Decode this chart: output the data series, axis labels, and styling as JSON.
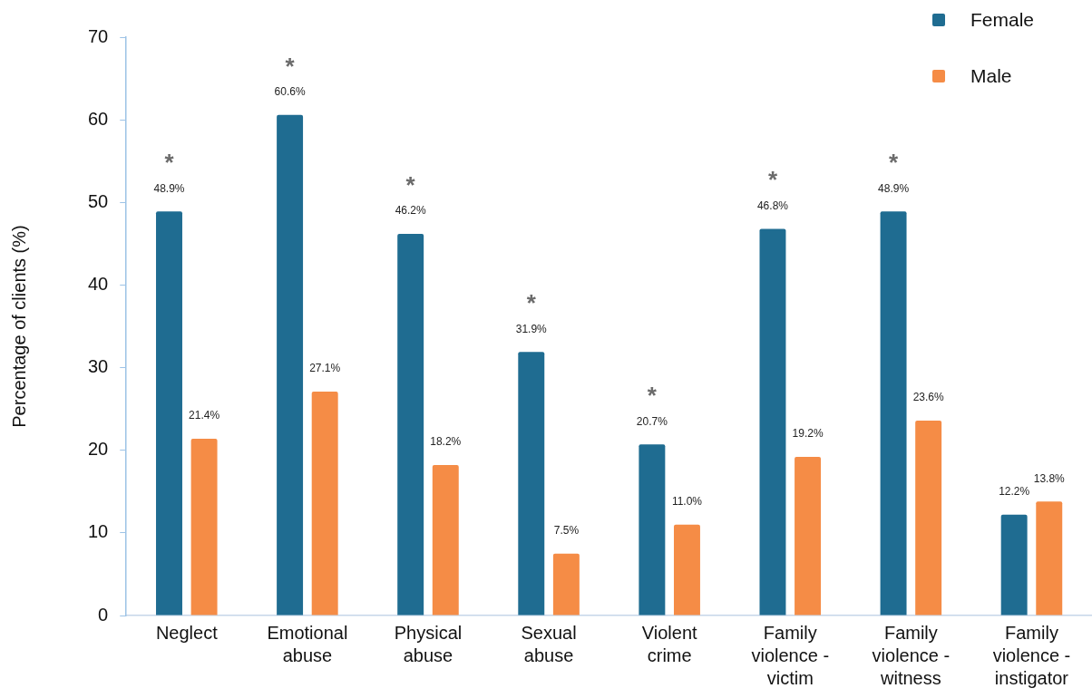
{
  "chart_data": {
    "type": "bar",
    "ylabel": "Percentage of clients (%)",
    "categories": [
      "Neglect",
      "Emotional abuse",
      "Physical abuse",
      "Sexual abuse",
      "Violent crime",
      "Family violence - victim",
      "Family violence - witness",
      "Family violence - instigator"
    ],
    "series": [
      {
        "name": "Female",
        "color": "#1f6c91",
        "values": [
          48.9,
          60.6,
          46.2,
          31.9,
          20.7,
          46.8,
          48.9,
          12.2
        ],
        "value_labels": [
          "48.9%",
          "60.6%",
          "46.2%",
          "31.9%",
          "20.7%",
          "46.8%",
          "48.9%",
          "12.2%"
        ]
      },
      {
        "name": "Male",
        "color": "#f58c46",
        "values": [
          21.4,
          27.1,
          18.2,
          7.5,
          11.0,
          19.2,
          23.6,
          13.8
        ],
        "value_labels": [
          "21.4%",
          "27.1%",
          "18.2%",
          "7.5%",
          "11.0%",
          "19.2%",
          "23.6%",
          "13.8%"
        ]
      }
    ],
    "ylim": [
      0,
      70
    ],
    "yticks": [
      0,
      10,
      20,
      30,
      40,
      50,
      60,
      70
    ],
    "legend": "top right",
    "annotations": [
      "*",
      "*",
      "*",
      "*",
      "*",
      "*",
      "*"
    ]
  }
}
